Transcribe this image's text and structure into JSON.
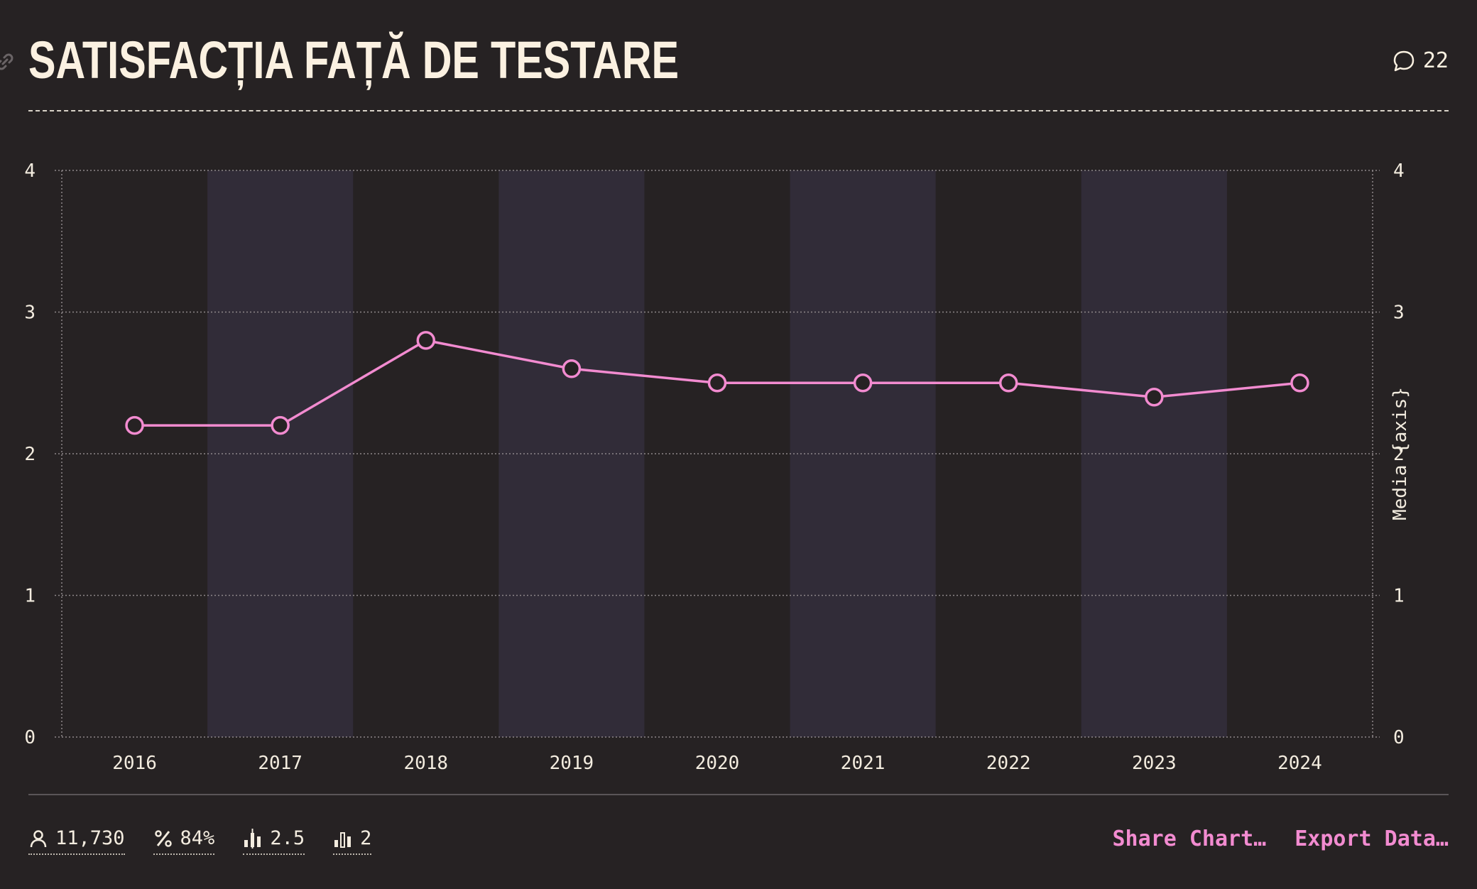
{
  "header": {
    "title": "SATISFACȚIA FAȚĂ DE TESTARE",
    "comment_count": "22"
  },
  "chart_data": {
    "type": "line",
    "categories": [
      "2016",
      "2017",
      "2018",
      "2019",
      "2020",
      "2021",
      "2022",
      "2023",
      "2024"
    ],
    "series": [
      {
        "values": [
          2.2,
          2.2,
          2.8,
          2.6,
          2.5,
          2.5,
          2.5,
          2.4,
          2.5
        ],
        "color": "#f28bd0"
      }
    ],
    "ylim": [
      0,
      4
    ],
    "yticks": [
      "0",
      "1",
      "2",
      "3",
      "4"
    ],
    "right_axis_label": "Media {axis}",
    "grid": true,
    "band_color": "#312c38"
  },
  "footer": {
    "stats": [
      {
        "icon": "person-icon",
        "value": "11,730"
      },
      {
        "icon": "percent-icon",
        "value": "84%"
      },
      {
        "icon": "average-bars-icon",
        "value": "2.5"
      },
      {
        "icon": "median-bars-icon",
        "value": "2"
      }
    ],
    "actions": {
      "share": "Share Chart…",
      "export": "Export Data…"
    }
  }
}
